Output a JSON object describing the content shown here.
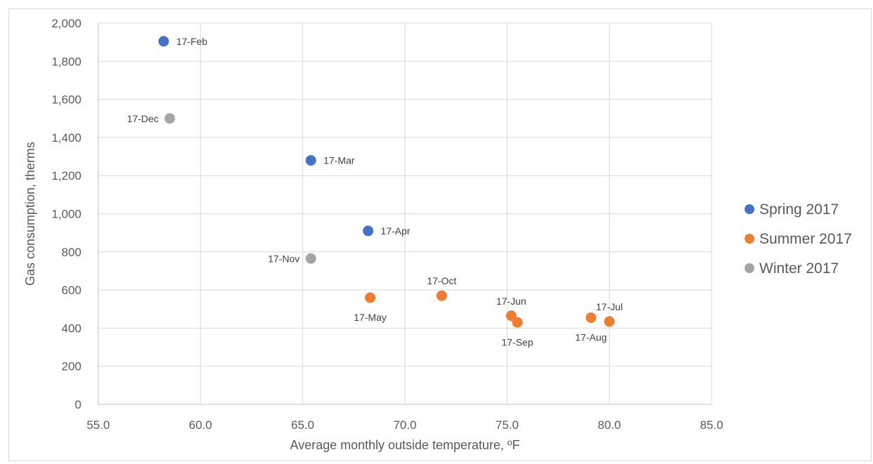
{
  "chart_data": {
    "type": "scatter",
    "title": "",
    "xlabel": "Average monthly outside temperature, ºF",
    "ylabel": "Gas consumption, therms",
    "xlim": [
      55,
      85
    ],
    "ylim": [
      0,
      2000
    ],
    "x_ticks": [
      55,
      60,
      65,
      70,
      75,
      80,
      85
    ],
    "x_tick_labels": [
      "55.0",
      "60.0",
      "65.0",
      "70.0",
      "75.0",
      "80.0",
      "85.0"
    ],
    "y_ticks": [
      0,
      200,
      400,
      600,
      800,
      1000,
      1200,
      1400,
      1600,
      1800,
      2000
    ],
    "y_tick_labels": [
      "0",
      "200",
      "400",
      "600",
      "800",
      "1,000",
      "1,200",
      "1,400",
      "1,600",
      "1,800",
      "2,000"
    ],
    "grid": true,
    "legend_position": "right",
    "series": [
      {
        "name": "Spring 2017",
        "color": "#4472c4",
        "points": [
          {
            "x": 58.2,
            "y": 1905,
            "label": "17-Feb",
            "label_pos": "right"
          },
          {
            "x": 65.4,
            "y": 1280,
            "label": "17-Mar",
            "label_pos": "right"
          },
          {
            "x": 68.2,
            "y": 910,
            "label": "17-Apr",
            "label_pos": "right"
          }
        ]
      },
      {
        "name": "Summer 2017",
        "color": "#ed7d31",
        "points": [
          {
            "x": 68.3,
            "y": 560,
            "label": "17-May",
            "label_pos": "below"
          },
          {
            "x": 71.8,
            "y": 570,
            "label": "17-Oct",
            "label_pos": "above"
          },
          {
            "x": 75.2,
            "y": 465,
            "label": "17-Jun",
            "label_pos": "above"
          },
          {
            "x": 75.5,
            "y": 430,
            "label": "17-Sep",
            "label_pos": "below"
          },
          {
            "x": 79.1,
            "y": 455,
            "label": "17-Aug",
            "label_pos": "below"
          },
          {
            "x": 80.0,
            "y": 435,
            "label": "17-Jul",
            "label_pos": "above"
          }
        ]
      },
      {
        "name": "Winter 2017",
        "color": "#a5a5a5",
        "points": [
          {
            "x": 58.5,
            "y": 1500,
            "label": "17-Dec",
            "label_pos": "left"
          },
          {
            "x": 65.4,
            "y": 765,
            "label": "17-Nov",
            "label_pos": "left"
          }
        ]
      }
    ]
  }
}
